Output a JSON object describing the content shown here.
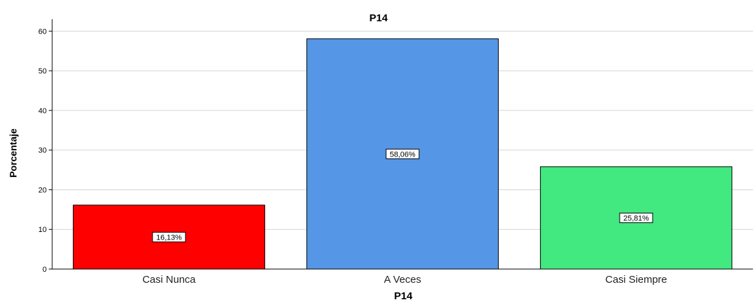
{
  "chart_data": {
    "type": "bar",
    "title": "P14",
    "xlabel": "P14",
    "ylabel": "Porcentaje",
    "categories": [
      "Casi Nunca",
      "A Veces",
      "Casi Siempre"
    ],
    "values": [
      16.13,
      58.06,
      25.81
    ],
    "data_labels": [
      "16,13%",
      "58,06%",
      "25,81%"
    ],
    "colors": [
      "#ff0000",
      "#5596e6",
      "#42e880"
    ],
    "ylim": [
      0,
      63
    ],
    "yticks": [
      0,
      10,
      20,
      30,
      40,
      50,
      60
    ],
    "grid": true,
    "legend": "none"
  }
}
